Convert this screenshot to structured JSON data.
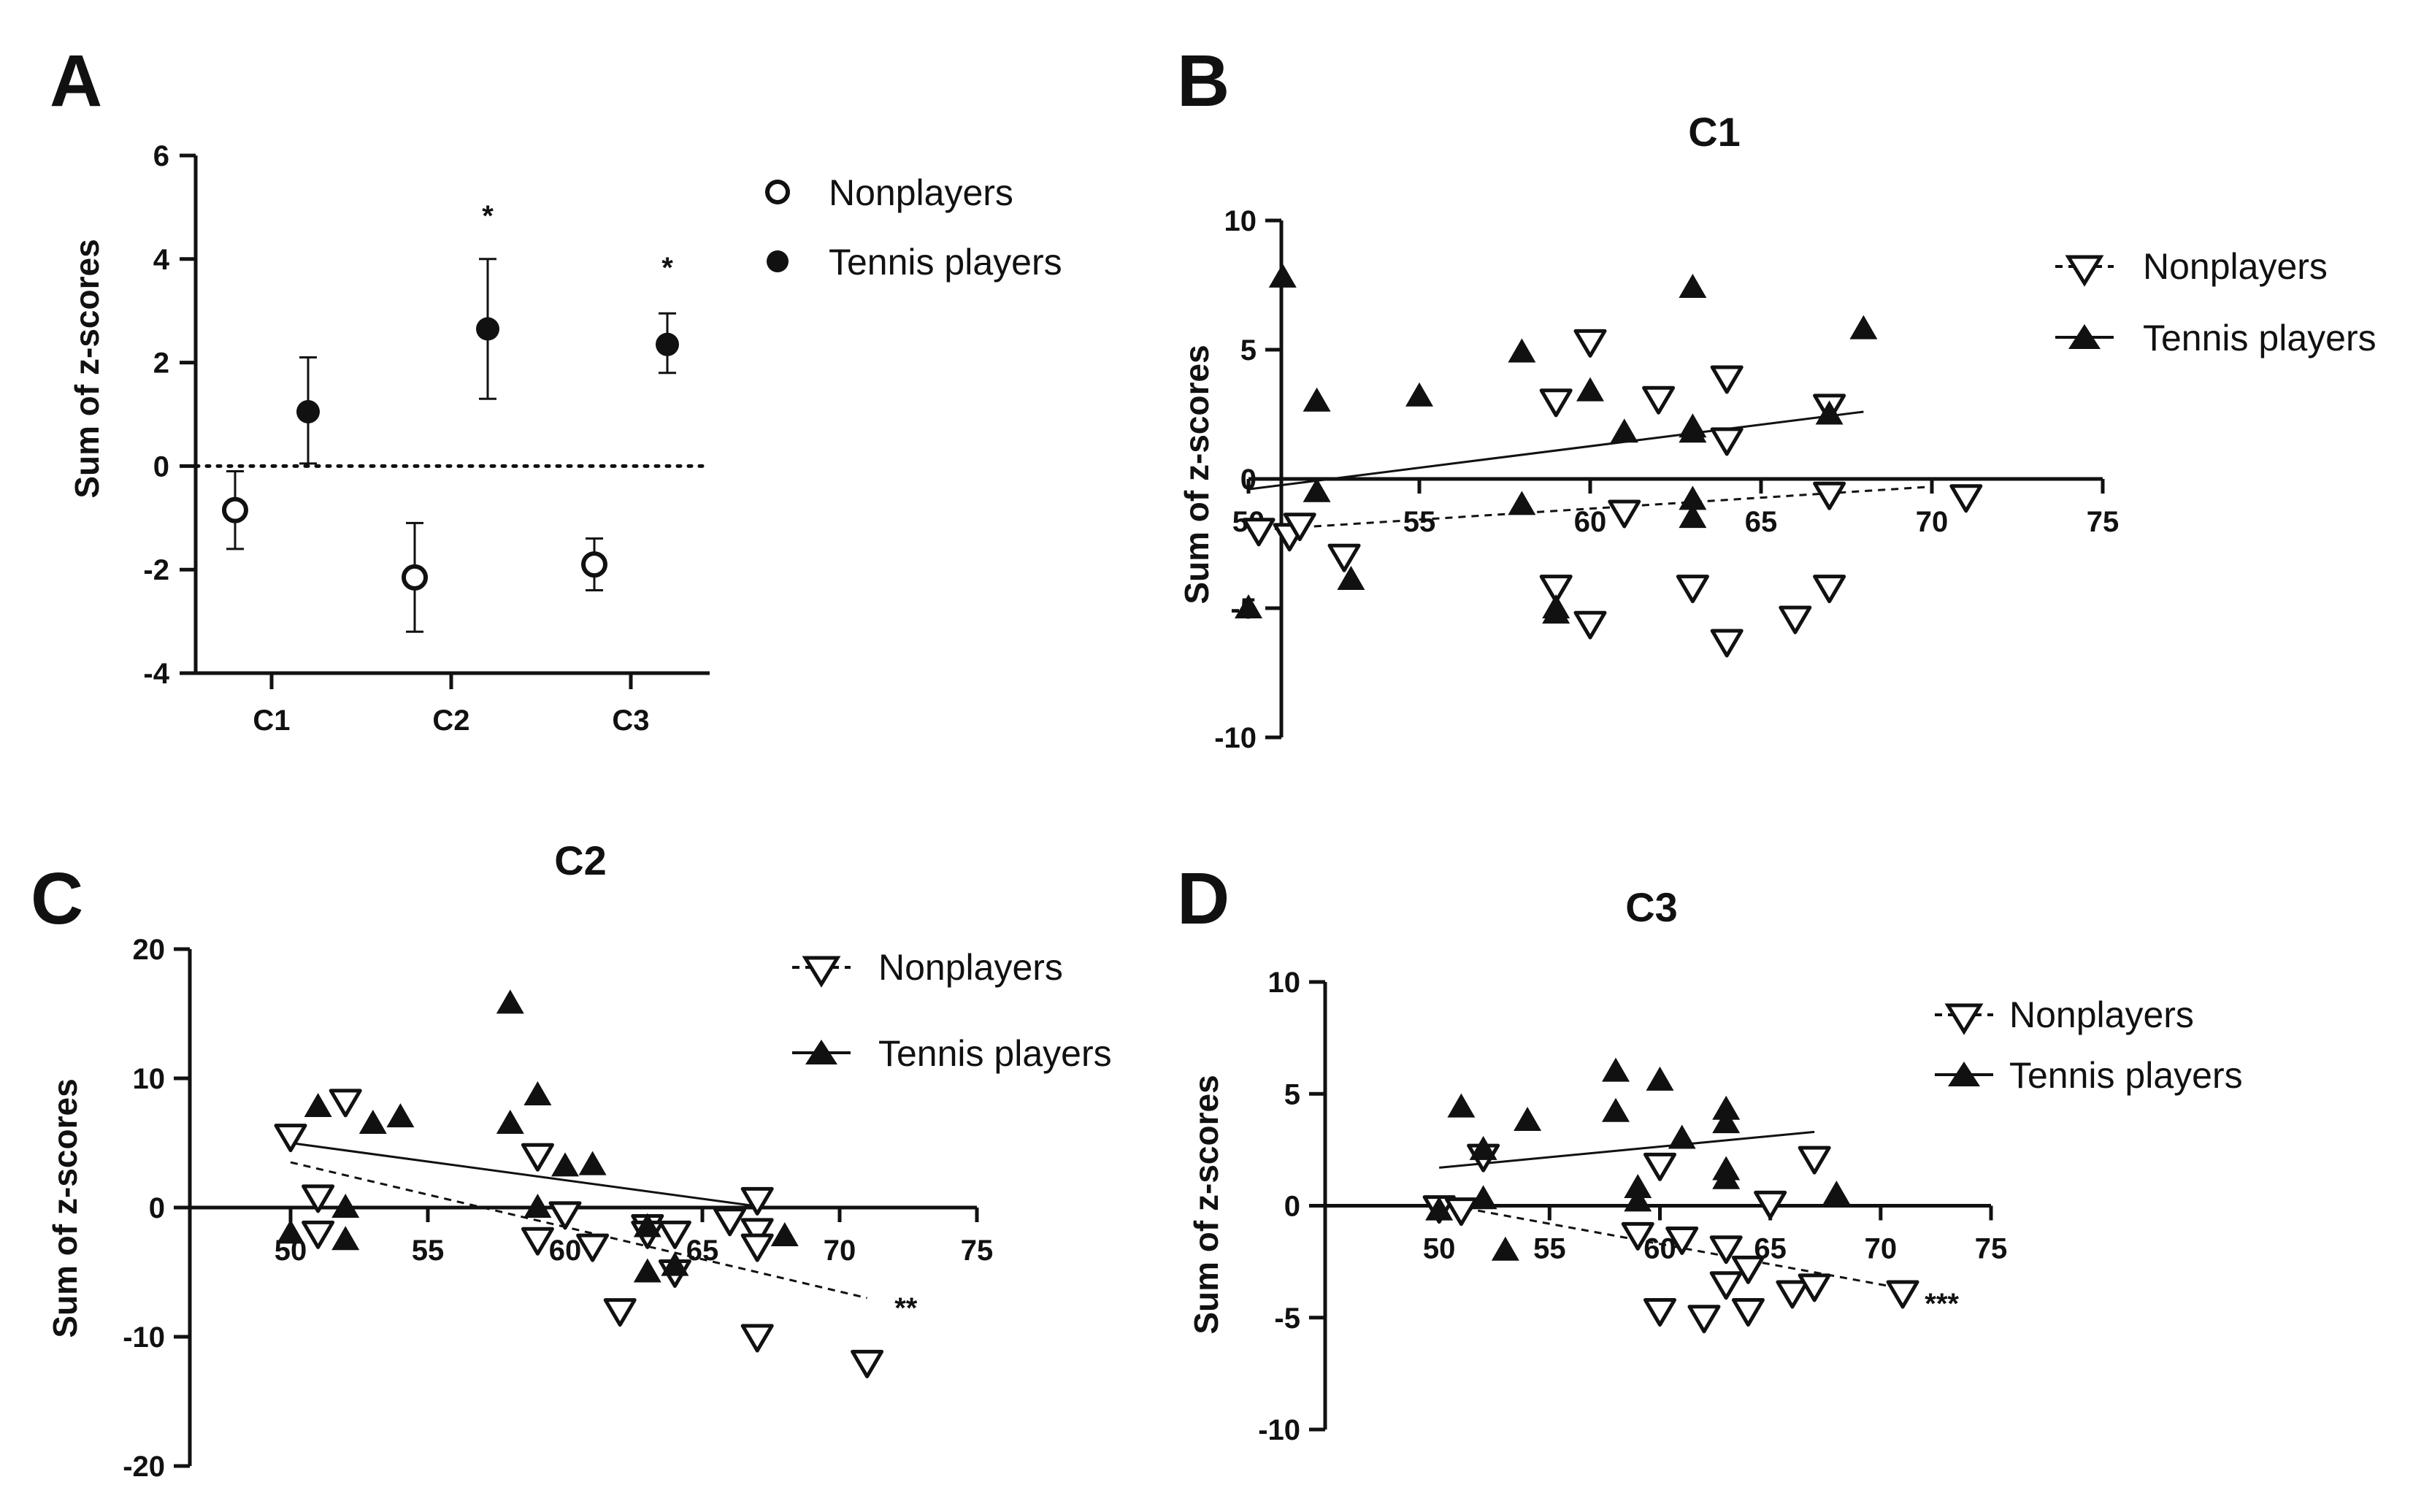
{
  "panels": {
    "A": {
      "letter": "A",
      "ylabel": "Sum of z-scores"
    },
    "B": {
      "letter": "B",
      "ylabel": "Sum of z-scores"
    },
    "C": {
      "letter": "C",
      "ylabel": "Sum of z-scores"
    },
    "D": {
      "letter": "D",
      "ylabel": "Sum of z-scores"
    }
  },
  "colors": {
    "ink": "#111111",
    "hollow": "#ffffff"
  },
  "chart_data": [
    {
      "id": "A",
      "type": "scatter",
      "title": "",
      "xlabel": "",
      "ylabel": "Sum of z-scores",
      "categories": [
        "C1",
        "C2",
        "C3"
      ],
      "ylim": [
        -4,
        6
      ],
      "yticks": [
        6,
        4,
        2,
        0,
        -2,
        -4
      ],
      "reference_line": 0,
      "series": [
        {
          "name": "Nonplayers",
          "marker": "open-circle",
          "means": [
            -0.85,
            -2.15,
            -1.9
          ],
          "err_low": [
            -1.6,
            -3.2,
            -2.4
          ],
          "err_high": [
            -0.1,
            -1.1,
            -1.4
          ]
        },
        {
          "name": "Tennis players",
          "marker": "filled-circle",
          "means": [
            1.05,
            2.65,
            2.35
          ],
          "err_low": [
            0.05,
            1.3,
            1.8
          ],
          "err_high": [
            2.1,
            4.0,
            2.95
          ]
        }
      ],
      "annotations": [
        {
          "category": "C2",
          "series": "Tennis players",
          "y": 4.9,
          "text": "*"
        },
        {
          "category": "C3",
          "series": "Tennis players",
          "y": 3.9,
          "text": "*"
        }
      ],
      "legend": [
        "Nonplayers",
        "Tennis players"
      ]
    },
    {
      "id": "B",
      "type": "scatter",
      "title": "C1",
      "xlabel": "",
      "ylabel": "Sum of z-scores",
      "xlim": [
        50,
        75
      ],
      "ylim": [
        -10,
        10
      ],
      "xticks": [
        50,
        55,
        60,
        65,
        70,
        75
      ],
      "yticks": [
        10,
        5,
        0,
        -5,
        -10
      ],
      "series": [
        {
          "name": "Nonplayers",
          "marker": "open-triangle-down",
          "line": "dashed",
          "points": [
            [
              50.3,
              -2
            ],
            [
              51.2,
              -2.2
            ],
            [
              51.5,
              -1.8
            ],
            [
              52.8,
              -3
            ],
            [
              59,
              3
            ],
            [
              59,
              -4.2
            ],
            [
              60,
              5.3
            ],
            [
              60,
              -5.6
            ],
            [
              61,
              -1.3
            ],
            [
              62,
              3.1
            ],
            [
              63,
              -4.2
            ],
            [
              64,
              3.9
            ],
            [
              64,
              1.5
            ],
            [
              64,
              -6.3
            ],
            [
              66,
              -5.4
            ],
            [
              67,
              -4.2
            ],
            [
              67,
              -0.6
            ],
            [
              67,
              2.8
            ],
            [
              71,
              -0.7
            ]
          ],
          "fit": {
            "x": [
              50,
              70
            ],
            "y": [
              -2,
              -0.3
            ]
          }
        },
        {
          "name": "Tennis players",
          "marker": "filled-triangle-up",
          "line": "solid",
          "points": [
            [
              50,
              -5
            ],
            [
              51,
              7.8
            ],
            [
              52,
              3
            ],
            [
              52,
              -0.5
            ],
            [
              53,
              -3.9
            ],
            [
              55,
              3.2
            ],
            [
              58,
              4.9
            ],
            [
              58,
              -1
            ],
            [
              60,
              3.4
            ],
            [
              61,
              1.8
            ],
            [
              63,
              7.4
            ],
            [
              63,
              2
            ],
            [
              63,
              1.8
            ],
            [
              63,
              -0.8
            ],
            [
              63,
              -1.5
            ],
            [
              59,
              -5
            ],
            [
              59,
              -5.2
            ],
            [
              67,
              2.5
            ],
            [
              68,
              5.8
            ]
          ],
          "fit": {
            "x": [
              50,
              68
            ],
            "y": [
              -0.4,
              2.6
            ]
          }
        }
      ],
      "legend": [
        "Nonplayers",
        "Tennis players"
      ]
    },
    {
      "id": "C",
      "type": "scatter",
      "title": "C2",
      "xlabel": "",
      "ylabel": "Sum of z-scores",
      "xlim": [
        45,
        75
      ],
      "ylim": [
        -20,
        20
      ],
      "xticks": [
        50,
        55,
        60,
        65,
        70,
        75
      ],
      "yticks": [
        20,
        10,
        0,
        -10,
        -20
      ],
      "series": [
        {
          "name": "Nonplayers",
          "marker": "open-triangle-down",
          "line": "dashed",
          "points": [
            [
              50,
              5.5
            ],
            [
              51,
              0.8
            ],
            [
              51,
              -2
            ],
            [
              52,
              8.2
            ],
            [
              59,
              4
            ],
            [
              59,
              -2.5
            ],
            [
              60,
              -0.5
            ],
            [
              61,
              -3
            ],
            [
              62,
              -8
            ],
            [
              63,
              -1.5
            ],
            [
              63,
              -2
            ],
            [
              64,
              -2
            ],
            [
              64,
              -5
            ],
            [
              66,
              -1
            ],
            [
              67,
              0.6
            ],
            [
              67,
              -1.8
            ],
            [
              67,
              -3
            ],
            [
              67,
              -10
            ],
            [
              71,
              -12
            ]
          ],
          "fit": {
            "x": [
              50,
              71
            ],
            "y": [
              3.5,
              -7
            ]
          }
        },
        {
          "name": "Tennis players",
          "marker": "filled-triangle-up",
          "line": "solid",
          "points": [
            [
              50,
              -2
            ],
            [
              51,
              7.8
            ],
            [
              52,
              -2.5
            ],
            [
              52,
              0
            ],
            [
              53,
              6.5
            ],
            [
              54,
              7
            ],
            [
              58,
              15.8
            ],
            [
              58,
              6.5
            ],
            [
              59,
              8.7
            ],
            [
              59,
              0
            ],
            [
              60,
              3.2
            ],
            [
              61,
              3.3
            ],
            [
              63,
              -1.5
            ],
            [
              63,
              -5
            ],
            [
              64,
              -4.5
            ],
            [
              68,
              -2.2
            ]
          ],
          "fit": {
            "x": [
              50,
              67
            ],
            "y": [
              5,
              0.1
            ]
          }
        }
      ],
      "annotations": [
        {
          "x": 72,
          "y": -7.3,
          "text": "**"
        }
      ],
      "legend": [
        "Nonplayers",
        "Tennis players"
      ]
    },
    {
      "id": "D",
      "type": "scatter",
      "title": "C3",
      "xlabel": "",
      "ylabel": "Sum of z-scores",
      "xlim": [
        45,
        75
      ],
      "ylim": [
        -10,
        10
      ],
      "xticks": [
        50,
        55,
        60,
        65,
        70,
        75
      ],
      "yticks": [
        10,
        5,
        0,
        -5,
        -10
      ],
      "series": [
        {
          "name": "Nonplayers",
          "marker": "open-triangle-down",
          "line": "dashed",
          "points": [
            [
              50,
              -0.1
            ],
            [
              51,
              -0.2
            ],
            [
              52,
              2.2
            ],
            [
              59,
              -1.3
            ],
            [
              60,
              1.8
            ],
            [
              60,
              -4.7
            ],
            [
              61,
              -1.5
            ],
            [
              62,
              -5
            ],
            [
              63,
              -1.9
            ],
            [
              63,
              -3.5
            ],
            [
              64,
              -2.8
            ],
            [
              64,
              -4.7
            ],
            [
              65,
              0.1
            ],
            [
              66,
              -3.9
            ],
            [
              67,
              -3.6
            ],
            [
              67,
              2.1
            ],
            [
              71,
              -3.9
            ]
          ],
          "fit": {
            "x": [
              50,
              71
            ],
            "y": [
              0.1,
              -3.7
            ]
          }
        },
        {
          "name": "Tennis players",
          "marker": "filled-triangle-up",
          "line": "solid",
          "points": [
            [
              50,
              -0.2
            ],
            [
              51,
              4.4
            ],
            [
              52,
              2.5
            ],
            [
              52,
              0.3
            ],
            [
              53,
              -2
            ],
            [
              54,
              3.8
            ],
            [
              58,
              6
            ],
            [
              58,
              4.2
            ],
            [
              59,
              0.8
            ],
            [
              59,
              0.2
            ],
            [
              60,
              5.6
            ],
            [
              61,
              3
            ],
            [
              63,
              4.3
            ],
            [
              63,
              3.7
            ],
            [
              63,
              1.6
            ],
            [
              63,
              1.2
            ],
            [
              68,
              0.5
            ]
          ],
          "fit": {
            "x": [
              50,
              67
            ],
            "y": [
              1.7,
              3.3
            ]
          }
        }
      ],
      "annotations": [
        {
          "x": 72,
          "y": -4.1,
          "text": "***"
        }
      ],
      "legend": [
        "Nonplayers",
        "Tennis players"
      ]
    }
  ]
}
